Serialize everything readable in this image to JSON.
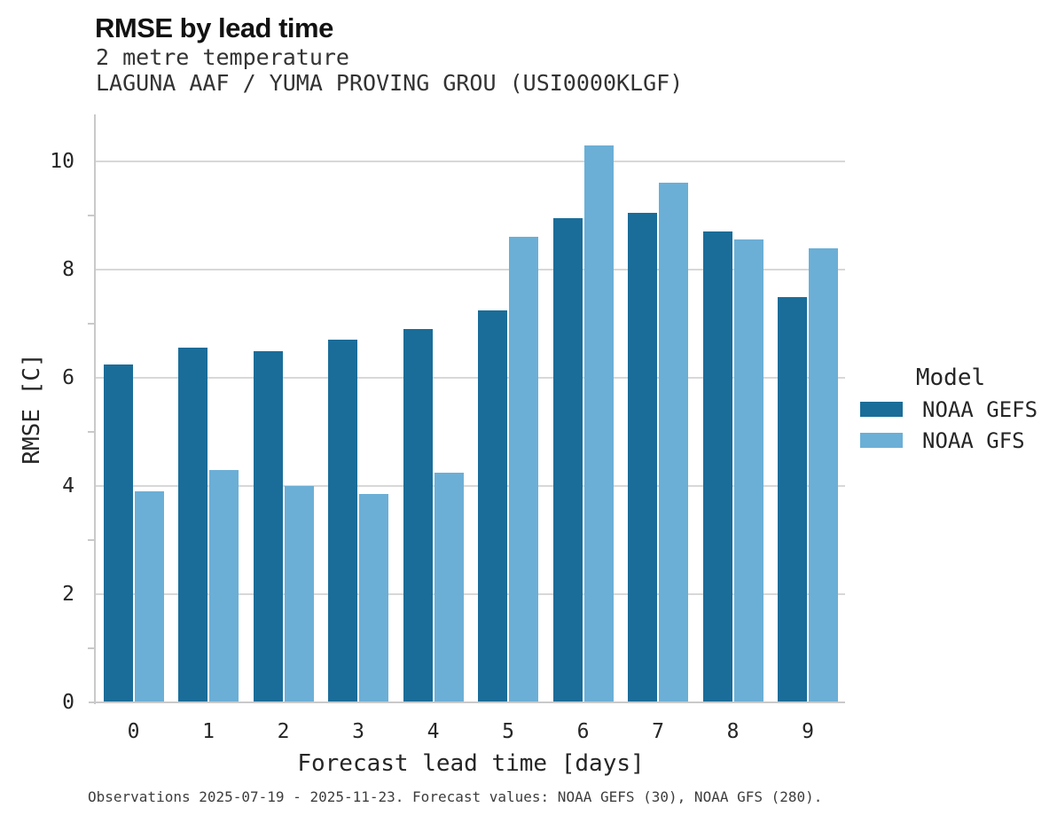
{
  "figure": {
    "title": "RMSE by lead time",
    "subtitle_line1": "2 metre temperature",
    "subtitle_line2": "LAGUNA AAF / YUMA PROVING GROU (USI0000KLGF)",
    "caption": "Observations 2025-07-19 - 2025-11-23. Forecast values: NOAA GEFS (30), NOAA GFS (280)."
  },
  "chart_data": {
    "type": "bar",
    "title": "RMSE by lead time",
    "subtitle": "2 metre temperature",
    "station": "LAGUNA AAF / YUMA PROVING GROU (USI0000KLGF)",
    "xlabel": "Forecast lead time [days]",
    "ylabel": "RMSE [C]",
    "categories": [
      "0",
      "1",
      "2",
      "3",
      "4",
      "5",
      "6",
      "7",
      "8",
      "9"
    ],
    "series": [
      {
        "name": "NOAA GEFS",
        "color": "#1a6d99",
        "values": [
          6.25,
          6.55,
          6.5,
          6.7,
          6.9,
          7.25,
          8.95,
          9.05,
          8.7,
          7.5
        ]
      },
      {
        "name": "NOAA GFS",
        "color": "#6bafd6",
        "values": [
          3.9,
          4.3,
          4.0,
          3.85,
          4.25,
          8.6,
          10.3,
          9.6,
          8.55,
          8.4
        ]
      }
    ],
    "ylim": [
      0,
      10.87
    ],
    "yticks_major": [
      0,
      2,
      4,
      6,
      8,
      10
    ],
    "yticks_minor": [
      1,
      3,
      5,
      7,
      9
    ],
    "grid": true,
    "legend_title": "Model",
    "legend_position": "right",
    "colors": {
      "grid": "#d8d8d8",
      "spine": "#c9c9c9",
      "tick_text": "#262626"
    }
  }
}
